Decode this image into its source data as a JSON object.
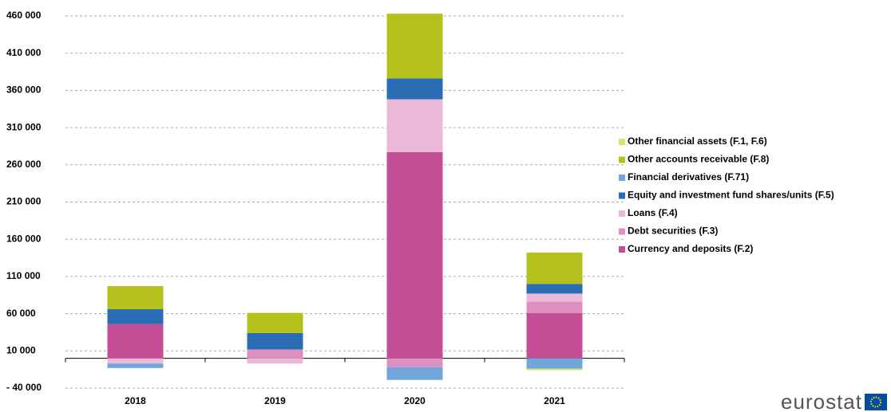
{
  "chart_data": {
    "type": "stacked-bar",
    "categories": [
      "2018",
      "2019",
      "2020",
      "2021"
    ],
    "series": [
      {
        "name": "Currency and deposits (F.2)",
        "color": "#c44e96",
        "values": [
          46000,
          0,
          277000,
          61000
        ]
      },
      {
        "name": "Debt securities (F.3)",
        "color": "#dc8fc0",
        "values": [
          0,
          12000,
          -12000,
          15000
        ]
      },
      {
        "name": "Loans (F.4)",
        "color": "#ebb8d8",
        "values": [
          -7000,
          -7000,
          71000,
          11000
        ]
      },
      {
        "name": "Equity and investment fund shares/units (F.5)",
        "color": "#2a6db5",
        "values": [
          20000,
          22000,
          28000,
          13000
        ]
      },
      {
        "name": "Financial derivatives (F.71)",
        "color": "#6fa6dc",
        "values": [
          -6000,
          0,
          -17000,
          -14000
        ]
      },
      {
        "name": "Other accounts  receivable (F.8)",
        "color": "#b5c21c",
        "values": [
          31000,
          27000,
          87000,
          42000
        ]
      },
      {
        "name": "Other financial assets (F.1, F.6)",
        "color": "#dce36a",
        "values": [
          0,
          0,
          0,
          -2000
        ]
      }
    ],
    "ylim": [
      -40000,
      460000
    ],
    "yticks": [
      {
        "value": -40000,
        "label": "- 40 000"
      },
      {
        "value": 10000,
        "label": "10 000"
      },
      {
        "value": 60000,
        "label": "60 000"
      },
      {
        "value": 110000,
        "label": "110 000"
      },
      {
        "value": 160000,
        "label": "160 000"
      },
      {
        "value": 210000,
        "label": "210 000"
      },
      {
        "value": 260000,
        "label": "260 000"
      },
      {
        "value": 310000,
        "label": "310 000"
      },
      {
        "value": 360000,
        "label": "360 000"
      },
      {
        "value": 410000,
        "label": "410 000"
      },
      {
        "value": 460000,
        "label": "460 000"
      }
    ],
    "grid": true,
    "legend": "right"
  },
  "logo_text": "eurostat"
}
